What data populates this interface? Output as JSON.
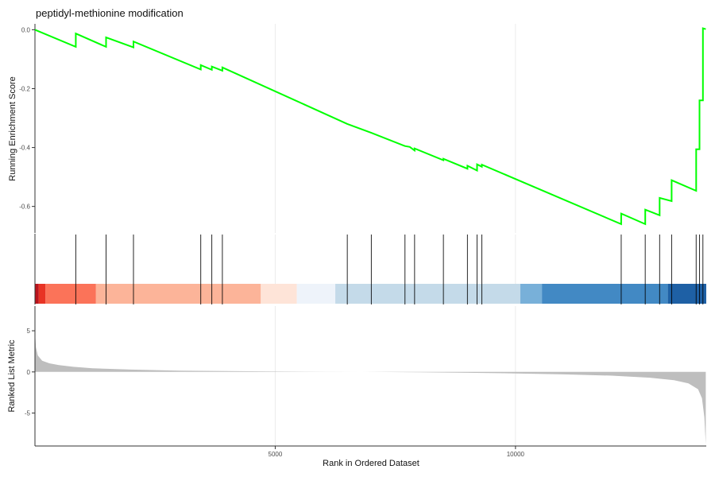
{
  "chart_data": {
    "type": "line",
    "title": "peptidyl-methionine modification",
    "xlabel": "Rank in Ordered Dataset",
    "xlim": [
      0,
      13970
    ],
    "x_ticks": [
      5000,
      10000
    ],
    "x_tick_labels": [
      "5000",
      "10000"
    ],
    "grid": true,
    "panels": [
      {
        "id": "enrichment",
        "ylabel": "Running Enrichment Score",
        "ylim": [
          -0.69,
          0.02
        ],
        "y_ticks": [
          0.0,
          -0.2,
          -0.4,
          -0.6
        ],
        "y_tick_labels": [
          "0.0",
          "-0.2",
          "-0.4",
          "-0.6"
        ],
        "line_color": "#00ff00",
        "series": [
          {
            "x": [
              0,
              850,
              850,
              1480,
              1480,
              2050,
              2050,
              3450,
              3450,
              3680,
              3680,
              3900,
              3900,
              6500,
              7000,
              7700,
              7800,
              7900,
              7900,
              8500,
              8500,
              9000,
              9000,
              9200,
              9200,
              9300,
              9300,
              12200,
              12200,
              12700,
              12700,
              13000,
              13000,
              13250,
              13250,
              13760,
              13760,
              13830,
              13830,
              13900,
              13900,
              13960
            ],
            "y": [
              0.0,
              -0.058,
              -0.013,
              -0.058,
              -0.026,
              -0.06,
              -0.04,
              -0.135,
              -0.12,
              -0.136,
              -0.125,
              -0.139,
              -0.128,
              -0.32,
              -0.35,
              -0.395,
              -0.398,
              -0.41,
              -0.403,
              -0.443,
              -0.438,
              -0.472,
              -0.462,
              -0.478,
              -0.457,
              -0.465,
              -0.458,
              -0.66,
              -0.624,
              -0.66,
              -0.611,
              -0.63,
              -0.571,
              -0.582,
              -0.511,
              -0.547,
              -0.406,
              -0.406,
              -0.24,
              -0.24,
              0.005,
              0.002
            ]
          }
        ]
      },
      {
        "id": "hits",
        "type": "rug",
        "hits": [
          850,
          1480,
          2050,
          3450,
          3680,
          3900,
          6500,
          7000,
          7700,
          7900,
          8500,
          9000,
          9200,
          9300,
          12200,
          12700,
          13000,
          13250,
          13760,
          13830,
          13900
        ],
        "color_bands": [
          {
            "from": 0,
            "to": 80,
            "color": "#ba141d"
          },
          {
            "from": 80,
            "to": 220,
            "color": "#e83324"
          },
          {
            "from": 220,
            "to": 1270,
            "color": "#fb7359"
          },
          {
            "from": 1270,
            "to": 4700,
            "color": "#fcb499"
          },
          {
            "from": 4700,
            "to": 5450,
            "color": "#fee4d8"
          },
          {
            "from": 5450,
            "to": 6250,
            "color": "#eef3fa"
          },
          {
            "from": 6250,
            "to": 10100,
            "color": "#c4dae9"
          },
          {
            "from": 10100,
            "to": 10550,
            "color": "#78b0d9"
          },
          {
            "from": 10550,
            "to": 13170,
            "color": "#4289c4"
          },
          {
            "from": 13170,
            "to": 13970,
            "color": "#1e60a5"
          }
        ]
      },
      {
        "id": "ranked-metric",
        "type": "area",
        "ylabel": "Ranked List Metric",
        "ylim": [
          -9.0,
          8.0
        ],
        "y_ticks": [
          5,
          0,
          -5
        ],
        "y_tick_labels": [
          "5",
          "0",
          "-5"
        ],
        "fill_color": "#bebebe",
        "x": [
          0,
          20,
          60,
          150,
          300,
          500,
          800,
          1200,
          2000,
          3000,
          4000,
          5000,
          6000,
          6800,
          8000,
          9000,
          10000,
          11000,
          12000,
          12800,
          13300,
          13600,
          13800,
          13880,
          13930,
          13960
        ],
        "values": [
          4.9,
          3.0,
          2.0,
          1.35,
          1.05,
          0.82,
          0.62,
          0.45,
          0.28,
          0.16,
          0.1,
          0.05,
          0.02,
          0.0,
          -0.05,
          -0.1,
          -0.18,
          -0.3,
          -0.45,
          -0.7,
          -1.0,
          -1.4,
          -2.1,
          -3.2,
          -5.5,
          -8.8
        ]
      }
    ]
  }
}
